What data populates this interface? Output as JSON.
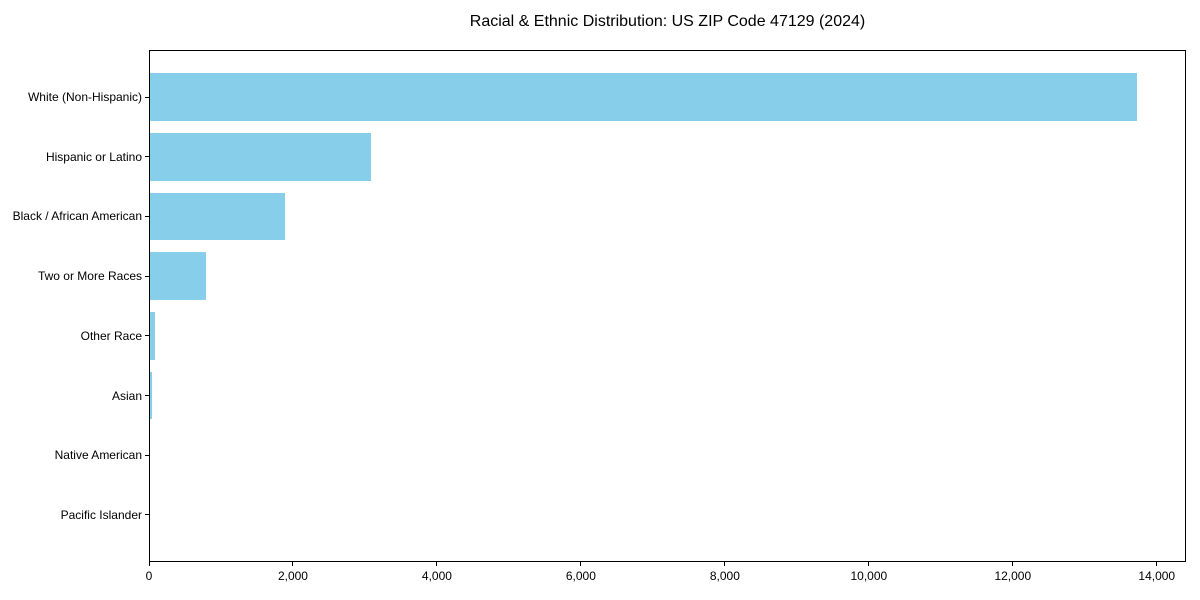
{
  "figure": {
    "title": "Racial & Ethnic Distribution: US ZIP Code 47129 (2024)"
  },
  "chart_data": {
    "type": "bar",
    "orientation": "horizontal",
    "title": "Racial & Ethnic Distribution: US ZIP Code 47129 (2024)",
    "categories": [
      "White (Non-Hispanic)",
      "Hispanic or Latino",
      "Black / African American",
      "Two or More Races",
      "Other Race",
      "Asian",
      "Native American",
      "Pacific Islander"
    ],
    "values": [
      13720,
      3080,
      1885,
      790,
      90,
      45,
      15,
      5
    ],
    "xlabel": "",
    "ylabel": "",
    "xlim": [
      0,
      14406
    ],
    "xticks": [
      0,
      2000,
      4000,
      6000,
      8000,
      10000,
      12000,
      14000
    ],
    "xtick_labels": [
      "0",
      "2,000",
      "4,000",
      "6,000",
      "8,000",
      "10,000",
      "12,000",
      "14,000"
    ],
    "bar_color": "#87CEEB",
    "grid": false,
    "legend": null,
    "background": "#ffffff"
  }
}
